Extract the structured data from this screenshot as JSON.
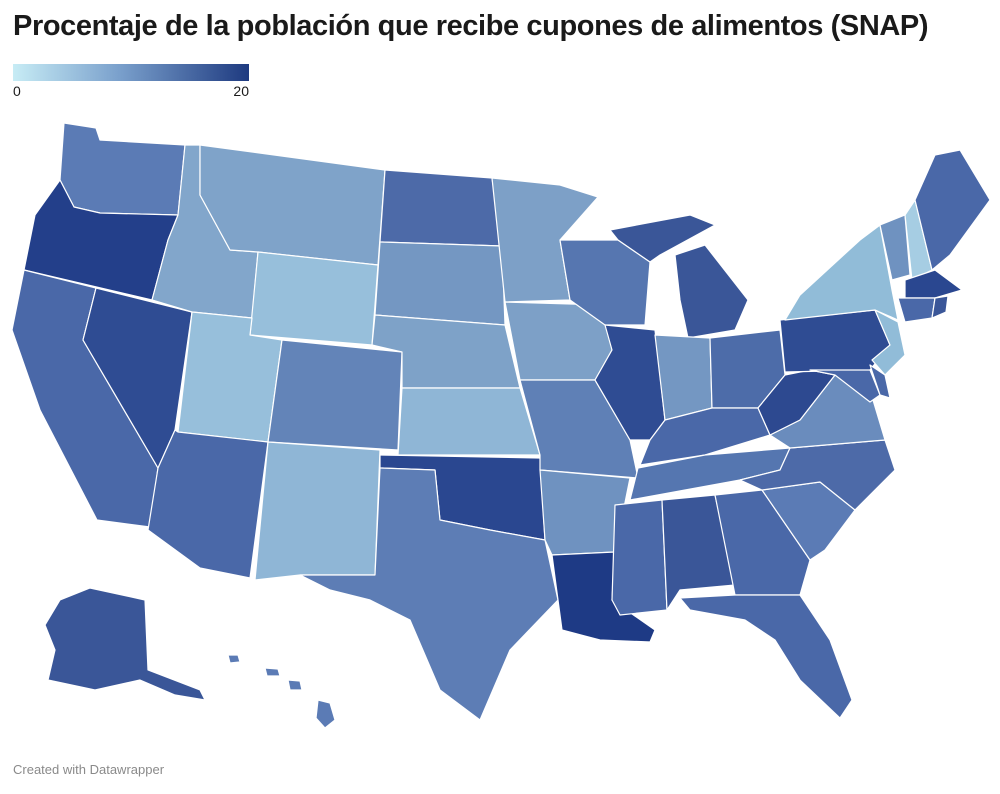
{
  "title": "Procentaje de la población que recibe cupones de alimentos (SNAP)",
  "legend": {
    "min_label": "0",
    "max_label": "20",
    "colors": [
      "#c7ecf5",
      "#7aa0cc",
      "#1e3a80"
    ]
  },
  "footer": "Created with Datawrapper",
  "states": [
    {
      "id": "WA",
      "color": "#5b7bb5"
    },
    {
      "id": "OR",
      "color": "#233f8a"
    },
    {
      "id": "CA",
      "color": "#4a68a8"
    },
    {
      "id": "NV",
      "color": "#2f4c93"
    },
    {
      "id": "ID",
      "color": "#82a6cb"
    },
    {
      "id": "MT",
      "color": "#7fa3c9"
    },
    {
      "id": "WY",
      "color": "#97bfdb"
    },
    {
      "id": "UT",
      "color": "#97bfdb"
    },
    {
      "id": "AZ",
      "color": "#4a68a8"
    },
    {
      "id": "CO",
      "color": "#6384b8"
    },
    {
      "id": "NM",
      "color": "#8fb6d6"
    },
    {
      "id": "ND",
      "color": "#4d6aa8"
    },
    {
      "id": "SD",
      "color": "#7497c2"
    },
    {
      "id": "NE",
      "color": "#7ea2c8"
    },
    {
      "id": "KS",
      "color": "#8fb6d6"
    },
    {
      "id": "OK",
      "color": "#2a4790"
    },
    {
      "id": "TX",
      "color": "#5d7db5"
    },
    {
      "id": "MN",
      "color": "#7da0c7"
    },
    {
      "id": "IA",
      "color": "#7da0c7"
    },
    {
      "id": "MO",
      "color": "#5f80b6"
    },
    {
      "id": "AR",
      "color": "#6f92c0"
    },
    {
      "id": "LA",
      "color": "#1e3a85"
    },
    {
      "id": "WI",
      "color": "#5676b0"
    },
    {
      "id": "IL",
      "color": "#2f4c93"
    },
    {
      "id": "MI",
      "color": "#3a5698"
    },
    {
      "id": "IN",
      "color": "#7497c2"
    },
    {
      "id": "OH",
      "color": "#4d6ca9"
    },
    {
      "id": "KY",
      "color": "#4a68a8"
    },
    {
      "id": "TN",
      "color": "#5576b0"
    },
    {
      "id": "MS",
      "color": "#4a68a8"
    },
    {
      "id": "AL",
      "color": "#3a5698"
    },
    {
      "id": "GA",
      "color": "#4a68a8"
    },
    {
      "id": "FL",
      "color": "#4a68a8"
    },
    {
      "id": "SC",
      "color": "#5b7bb5"
    },
    {
      "id": "NC",
      "color": "#4d6aa8"
    },
    {
      "id": "VA",
      "color": "#6a8cbd"
    },
    {
      "id": "WV",
      "color": "#2d4990"
    },
    {
      "id": "PA",
      "color": "#2f4c93"
    },
    {
      "id": "NY",
      "color": "#91bcd8"
    },
    {
      "id": "NJ",
      "color": "#91bcd8"
    },
    {
      "id": "MD",
      "color": "#4a68a8"
    },
    {
      "id": "DE",
      "color": "#4a68a8"
    },
    {
      "id": "VT",
      "color": "#6f92c0"
    },
    {
      "id": "NH",
      "color": "#a6cde3"
    },
    {
      "id": "ME",
      "color": "#4a68a8"
    },
    {
      "id": "MA",
      "color": "#2a4790"
    },
    {
      "id": "CT",
      "color": "#4a68a8"
    },
    {
      "id": "RI",
      "color": "#3a5698"
    },
    {
      "id": "AK",
      "color": "#3a5698"
    },
    {
      "id": "HI",
      "color": "#5b7bb5"
    }
  ]
}
